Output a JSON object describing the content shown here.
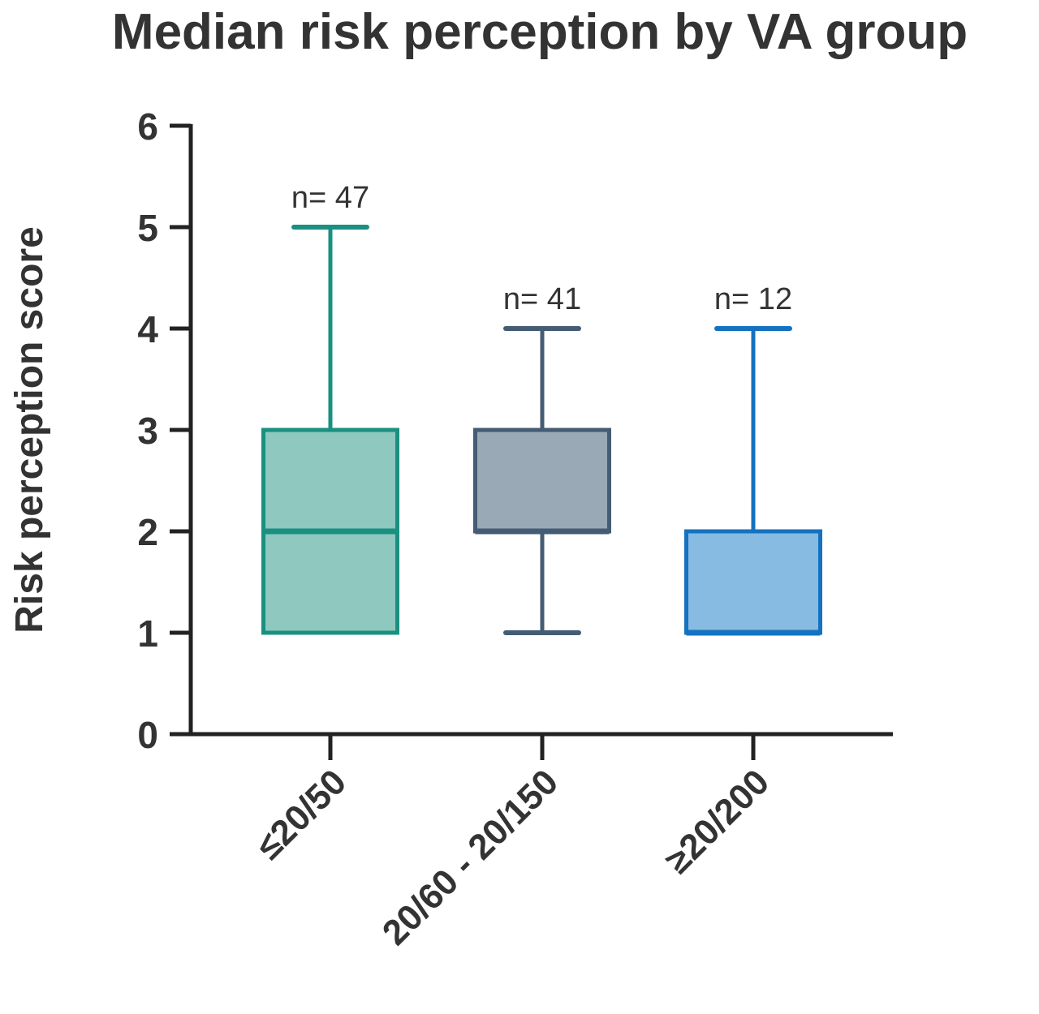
{
  "chart_data": {
    "type": "box",
    "title": "Median risk perception by VA group",
    "xlabel": "",
    "ylabel": "Risk perception score",
    "ylim": [
      0,
      6
    ],
    "yticks": [
      "0",
      "1",
      "2",
      "3",
      "4",
      "5",
      "6"
    ],
    "grid": false,
    "categories": [
      "≤20/50",
      "20/60 - 20/150",
      "≥20/200"
    ],
    "series": [
      {
        "category": "≤20/50",
        "n_label": "n= 47",
        "min": 1,
        "q1": 1,
        "median": 2,
        "q3": 3,
        "max": 5,
        "stroke": "#1a9080",
        "fill": "#8ec8bf"
      },
      {
        "category": "20/60 - 20/150",
        "n_label": "n= 41",
        "min": 1,
        "q1": 2,
        "median": 2,
        "q3": 3,
        "max": 4,
        "stroke": "#445c74",
        "fill": "#9aa9b6"
      },
      {
        "category": "≥20/200",
        "n_label": "n= 12",
        "min": 1,
        "q1": 1,
        "median": 1,
        "q3": 2,
        "max": 4,
        "stroke": "#1472c0",
        "fill": "#88bbe2"
      }
    ]
  }
}
